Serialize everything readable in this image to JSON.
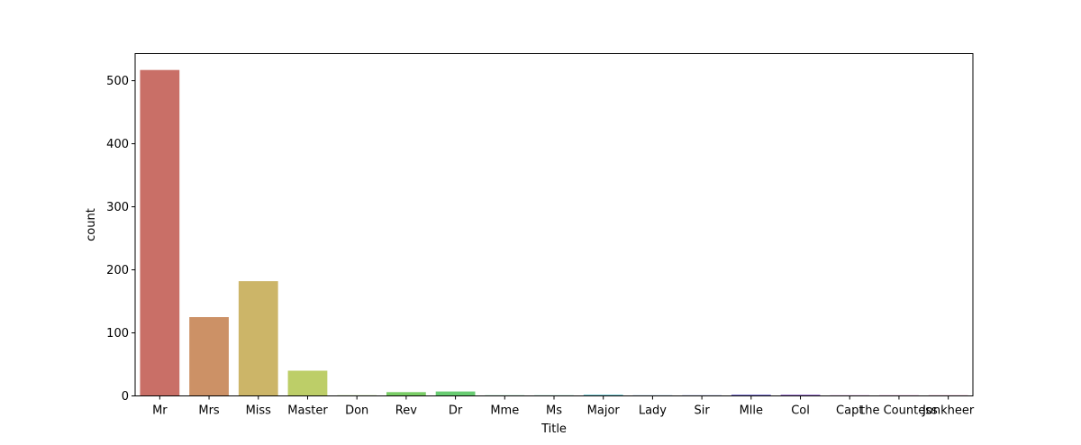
{
  "chart_data": {
    "type": "bar",
    "title": "",
    "xlabel": "Title",
    "ylabel": "count",
    "ylim": [
      0,
      543
    ],
    "yticks": [
      0,
      100,
      200,
      300,
      400,
      500
    ],
    "categories": [
      "Mr",
      "Mrs",
      "Miss",
      "Master",
      "Don",
      "Rev",
      "Dr",
      "Mme",
      "Ms",
      "Major",
      "Lady",
      "Sir",
      "Mlle",
      "Col",
      "Capt",
      "the Countess",
      "Jonkheer"
    ],
    "values": [
      517,
      125,
      182,
      40,
      1,
      6,
      7,
      1,
      1,
      2,
      1,
      1,
      2,
      2,
      1,
      1,
      1
    ],
    "colors": [
      "#c96f67",
      "#cc9166",
      "#ccb568",
      "#bdce68",
      "#9ccc66",
      "#79cd66",
      "#68cc72",
      "#67ce94",
      "#66cdb7",
      "#66c2cc",
      "#65a0ce",
      "#677ccc",
      "#7066ce",
      "#9467cc",
      "#b967cc",
      "#cc67bf",
      "#cd669c"
    ],
    "grid": false,
    "legend": "none"
  }
}
